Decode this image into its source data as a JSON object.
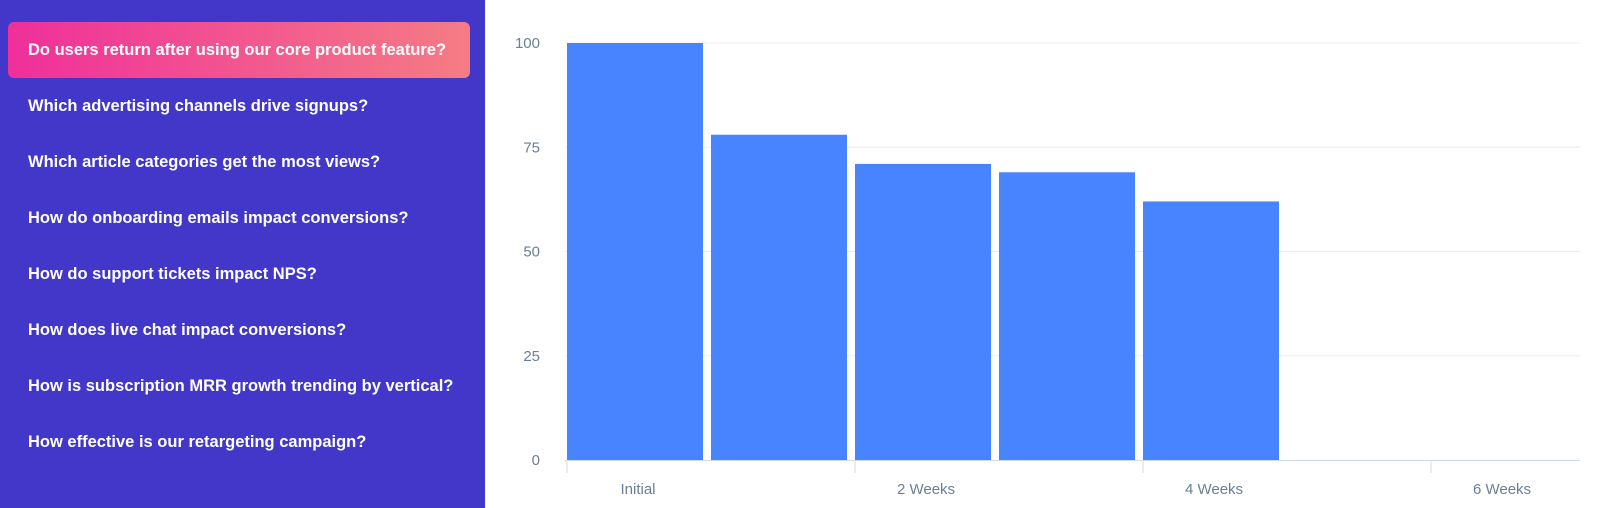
{
  "sidebar": {
    "active_index": 0,
    "colors": {
      "background": "#4237c8",
      "active_gradient_start": "#ef2f9b",
      "active_gradient_end": "#f57c84",
      "text": "#ffffff"
    },
    "items": [
      {
        "label": "Do users return after using our core product feature?"
      },
      {
        "label": "Which advertising channels drive signups?"
      },
      {
        "label": "Which article categories get the most views?"
      },
      {
        "label": "How do onboarding emails impact conversions?"
      },
      {
        "label": "How do support tickets impact NPS?"
      },
      {
        "label": "How does live chat impact conversions?"
      },
      {
        "label": "How is subscription MRR growth trending by vertical?"
      },
      {
        "label": "How effective is our retargeting campaign?"
      }
    ]
  },
  "chart_data": {
    "type": "bar",
    "x_tick_labels": [
      "Initial",
      "2 Weeks",
      "4 Weeks",
      "6 Weeks"
    ],
    "x_ticks": [
      0,
      2,
      4,
      6
    ],
    "x": [
      0,
      1,
      2,
      3,
      4
    ],
    "values": [
      100,
      78,
      71,
      69,
      62
    ],
    "ylim": [
      0,
      100
    ],
    "y_ticks": [
      0,
      25,
      50,
      75,
      100
    ],
    "xlabel": "",
    "ylabel": "",
    "title": "",
    "grid": true,
    "bar_color": "#4884ff",
    "grid_color": "#e8edf3",
    "axis_color": "#d3dbe4",
    "tick_label_color": "#6a7f98"
  }
}
